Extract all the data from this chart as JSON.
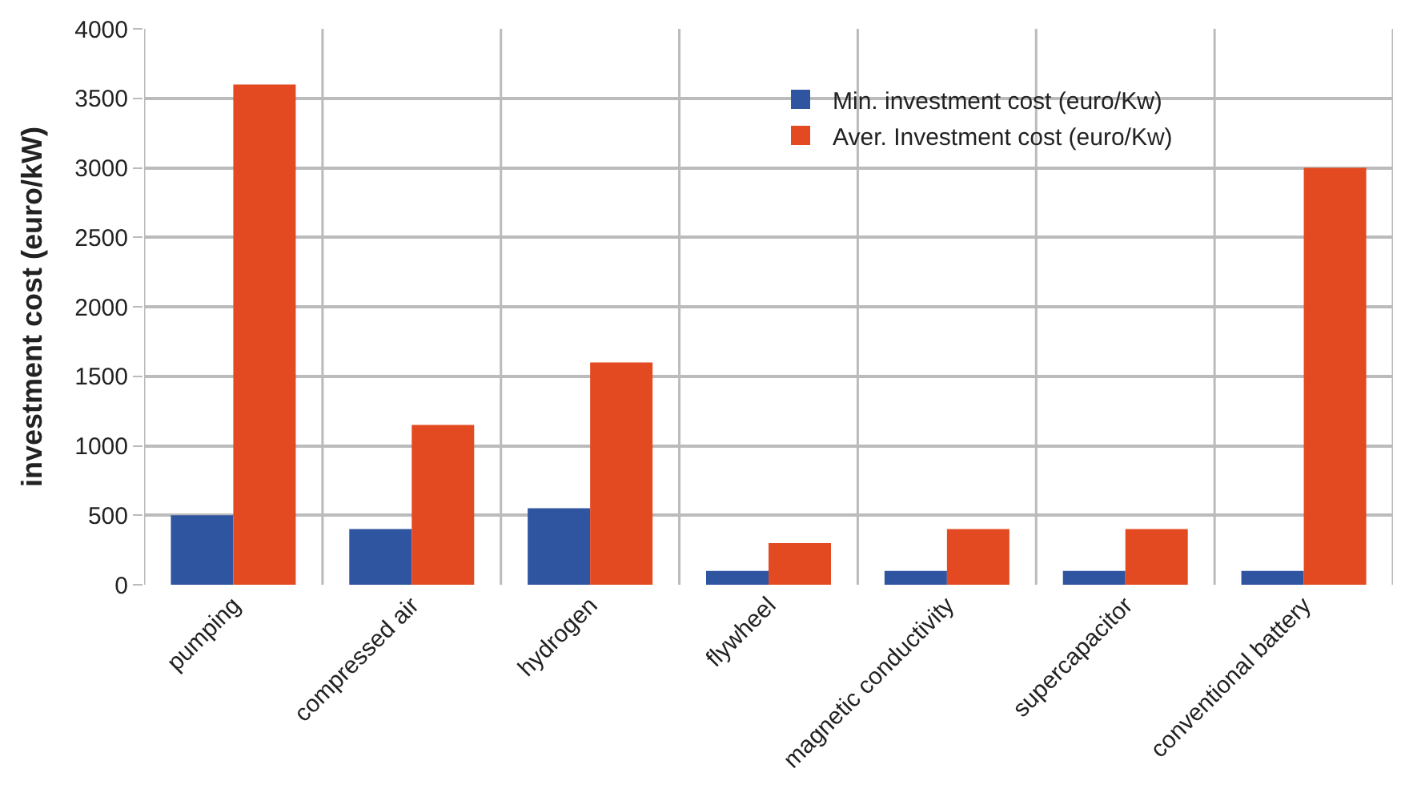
{
  "chart_data": {
    "type": "bar",
    "ylabel": "investment cost (euro/kW)",
    "categories": [
      "pumping",
      "compressed air",
      "hydrogen",
      "flywheel",
      "magnetic conductivity",
      "supercapacitor",
      "conventional battery"
    ],
    "series": [
      {
        "name": "Min. investment cost (euro/Kw)",
        "color": "#2f54a0",
        "values": [
          500,
          400,
          550,
          100,
          100,
          100,
          100
        ]
      },
      {
        "name": "Aver. Investment cost (euro/Kw)",
        "color": "#e34a21",
        "values": [
          3600,
          1150,
          1600,
          300,
          400,
          400,
          3000
        ]
      }
    ],
    "ylim": [
      0,
      4000
    ],
    "yticks": [
      0,
      500,
      1000,
      1500,
      2000,
      2500,
      3000,
      3500,
      4000
    ],
    "grid": true,
    "legend": "top right"
  }
}
